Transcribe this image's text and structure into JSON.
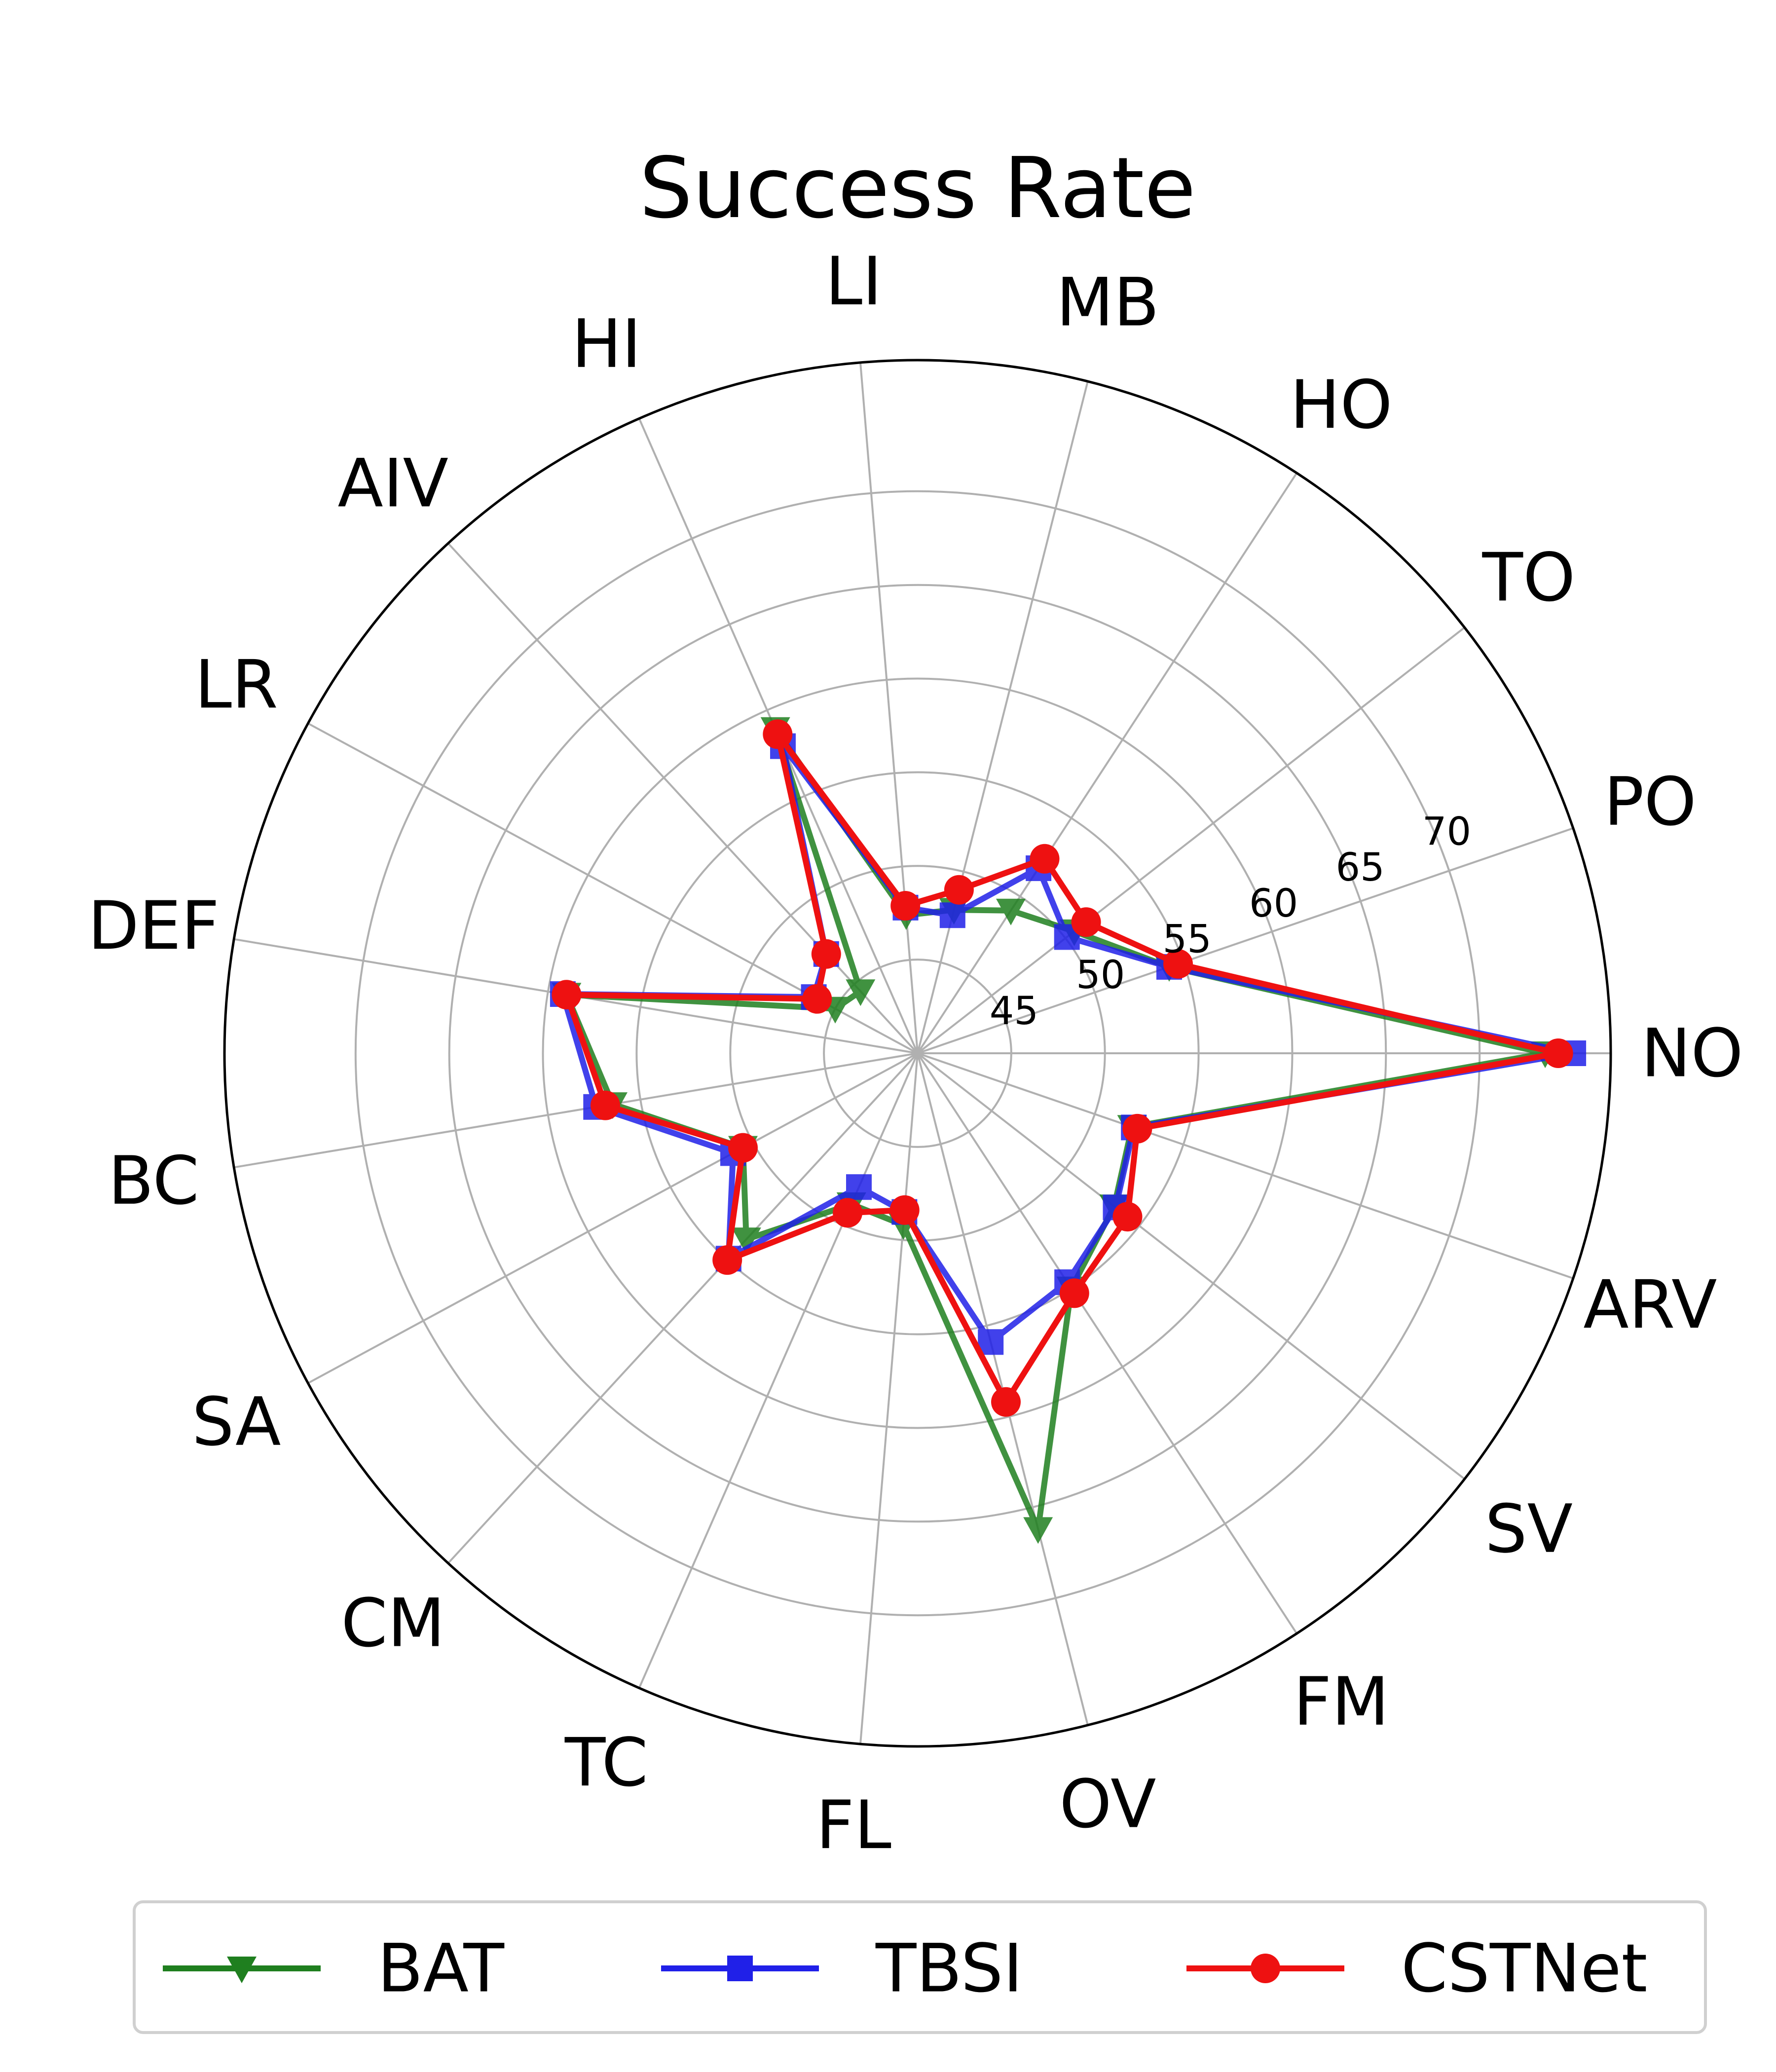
{
  "chart_data": {
    "type": "radar",
    "title": "Success Rate",
    "categories": [
      "NO",
      "PO",
      "TO",
      "HO",
      "MB",
      "LI",
      "HI",
      "AIV",
      "LR",
      "DEF",
      "BC",
      "SA",
      "CM",
      "TC",
      "FL",
      "OV",
      "FM",
      "SV",
      "ARV"
    ],
    "radial_ticks": [
      "45",
      "50",
      "55",
      "60",
      "65",
      "70"
    ],
    "radial_tick_values": [
      45,
      50,
      55,
      60,
      65,
      70
    ],
    "rlim": [
      40,
      77
    ],
    "grid": true,
    "legend_position": "bottom",
    "series": [
      {
        "name": "BAT",
        "color": "#1f7f1f",
        "marker": "triangle-down",
        "values": [
          73.5,
          54.2,
          50.6,
          49.1,
          47.9,
          47.4,
          58.9,
          44.5,
          45.0,
          59.0,
          56.5,
          50.6,
          53.5,
          48.8,
          49.2,
          66.2,
          55.0,
          53.3,
          52.1
        ]
      },
      {
        "name": "TBSI",
        "color": "#2020e8",
        "marker": "square",
        "values": [
          75.0,
          54.2,
          50.1,
          51.8,
          47.6,
          47.8,
          57.9,
          47.2,
          46.3,
          59.2,
          57.4,
          51.2,
          54.9,
          47.8,
          48.5,
          55.9,
          54.6,
          53.4,
          52.2
        ]
      },
      {
        "name": "CSTNet",
        "color": "#ee1111",
        "marker": "circle",
        "values": [
          74.2,
          54.7,
          51.4,
          52.4,
          49.0,
          47.9,
          58.6,
          47.2,
          46.1,
          59.0,
          56.9,
          50.6,
          55.0,
          49.3,
          48.4,
          59.2,
          55.3,
          54.2,
          52.4
        ]
      }
    ]
  }
}
